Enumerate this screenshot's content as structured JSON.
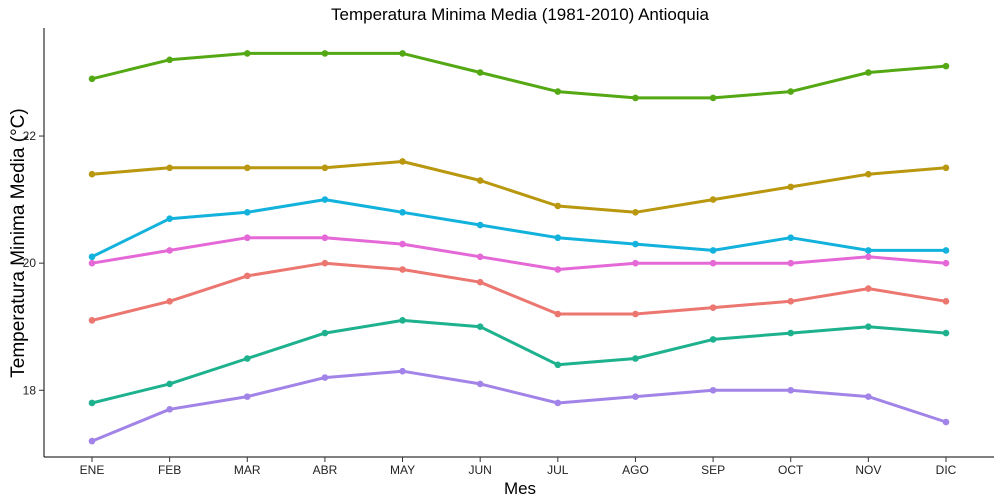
{
  "chart_data": {
    "type": "line",
    "title": "Temperatura Minima Media (1981-2010)  Antioquia",
    "xlabel": "Mes",
    "ylabel": "Temperatura Minima Media  (°C)",
    "categories": [
      "ENE",
      "FEB",
      "MAR",
      "ABR",
      "MAY",
      "JUN",
      "JUL",
      "AGO",
      "SEP",
      "OCT",
      "NOV",
      "DIC"
    ],
    "ylim": [
      16.95,
      23.7
    ],
    "yticks": [
      18,
      20,
      22
    ],
    "grid": false,
    "legend": "none",
    "series": [
      {
        "name": "green",
        "color": "#53A814",
        "values": [
          22.9,
          23.2,
          23.3,
          23.3,
          23.3,
          23.0,
          22.7,
          22.6,
          22.6,
          22.7,
          23.0,
          23.1
        ]
      },
      {
        "name": "olive",
        "color": "#B9970F",
        "values": [
          21.4,
          21.5,
          21.5,
          21.5,
          21.6,
          21.3,
          20.9,
          20.8,
          21.0,
          21.2,
          21.4,
          21.5
        ]
      },
      {
        "name": "blue",
        "color": "#12B2DD",
        "values": [
          20.1,
          20.7,
          20.8,
          21.0,
          20.8,
          20.6,
          20.4,
          20.3,
          20.2,
          20.4,
          20.2,
          20.2
        ]
      },
      {
        "name": "pink",
        "color": "#E568D7",
        "values": [
          20.0,
          20.2,
          20.4,
          20.4,
          20.3,
          20.1,
          19.9,
          20.0,
          20.0,
          20.0,
          20.1,
          20.0
        ]
      },
      {
        "name": "salmon",
        "color": "#EC7670",
        "values": [
          19.1,
          19.4,
          19.8,
          20.0,
          19.9,
          19.7,
          19.2,
          19.2,
          19.3,
          19.4,
          19.6,
          19.4
        ]
      },
      {
        "name": "teal",
        "color": "#1DB18E",
        "values": [
          17.8,
          18.1,
          18.5,
          18.9,
          19.1,
          19.0,
          18.4,
          18.5,
          18.8,
          18.9,
          19.0,
          18.9
        ]
      },
      {
        "name": "purple",
        "color": "#A284E8",
        "values": [
          17.2,
          17.7,
          17.9,
          18.2,
          18.3,
          18.1,
          17.8,
          17.9,
          18.0,
          18.0,
          17.9,
          17.5
        ]
      }
    ]
  }
}
